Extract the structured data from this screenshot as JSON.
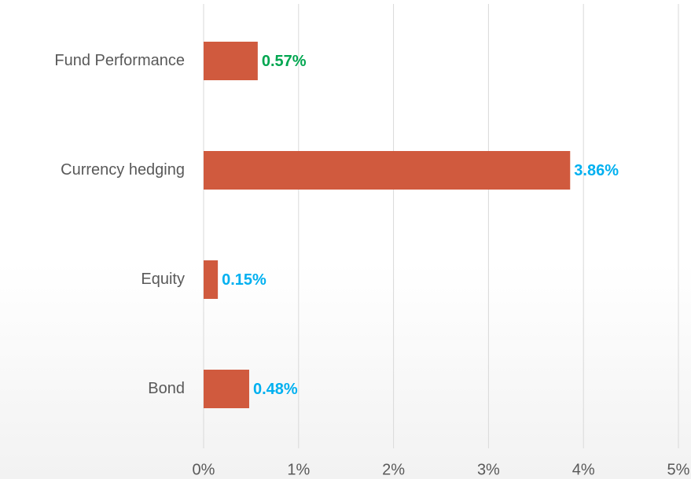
{
  "chart_data": {
    "type": "bar",
    "orientation": "horizontal",
    "categories": [
      "Fund Performance",
      "Currency hedging",
      "Equity",
      "Bond"
    ],
    "values": [
      0.57,
      3.86,
      0.15,
      0.48
    ],
    "value_labels": [
      "0.57%",
      "3.86%",
      "0.15%",
      "0.48%"
    ],
    "value_label_colors": [
      "#00a650",
      "#00b0f0",
      "#00b0f0",
      "#00b0f0"
    ],
    "color": "#d05a3e",
    "xlim": [
      0,
      5
    ],
    "xticks": [
      {
        "value": 0,
        "label": "0%"
      },
      {
        "value": 1,
        "label": "1%"
      },
      {
        "value": 2,
        "label": "2%"
      },
      {
        "value": 3,
        "label": "3%"
      },
      {
        "value": 4,
        "label": "4%"
      },
      {
        "value": 5,
        "label": "5%"
      }
    ],
    "grid": true
  }
}
